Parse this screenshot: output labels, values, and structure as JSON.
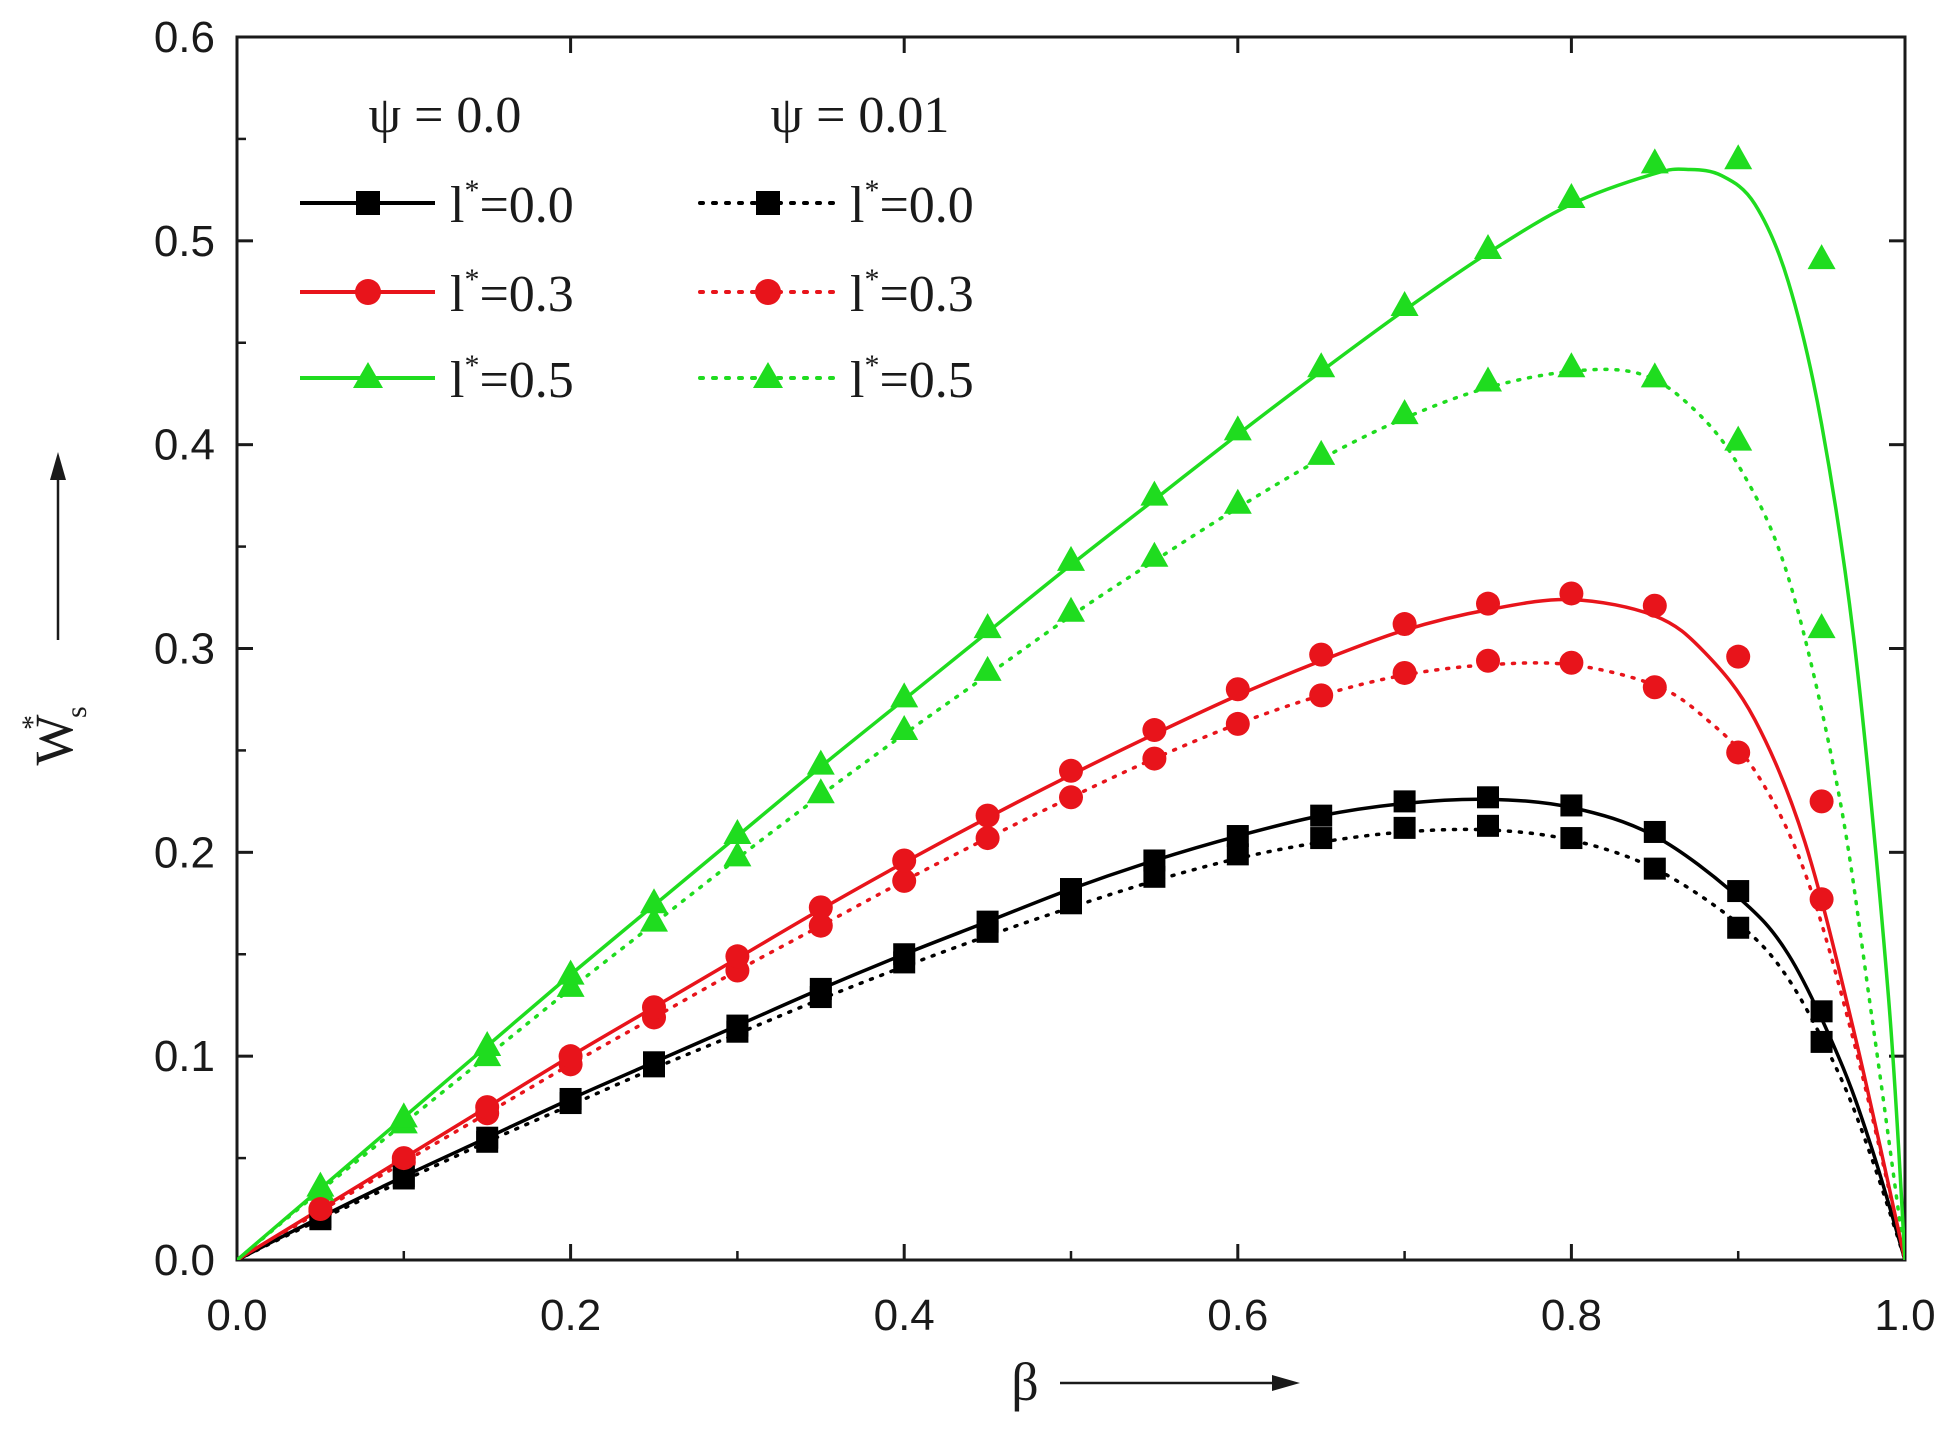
{
  "chart_data": {
    "type": "line",
    "title": "",
    "xlabel": "β",
    "ylabel": "W",
    "ylabel_sup": "*",
    "ylabel_sub": "s",
    "xlim": [
      0.0,
      1.0
    ],
    "ylim": [
      0.0,
      0.6
    ],
    "xticks": [
      0.0,
      0.2,
      0.4,
      0.6,
      0.8,
      1.0
    ],
    "xtick_labels": [
      "0.0",
      "0.2",
      "0.4",
      "0.6",
      "0.8",
      "1.0"
    ],
    "yticks": [
      0.0,
      0.1,
      0.2,
      0.3,
      0.4,
      0.5,
      0.6
    ],
    "ytick_labels": [
      "0.0",
      "0.1",
      "0.2",
      "0.3",
      "0.4",
      "0.5",
      "0.6"
    ],
    "grid": false,
    "legend": {
      "placement": "top-left",
      "group_headers": [
        "ψ = 0.0",
        "ψ = 0.01"
      ]
    },
    "colors": {
      "black": "#000000",
      "red": "#e8141b",
      "green": "#1fdc1f"
    },
    "series": [
      {
        "id": "s0",
        "name": "l*=0.0",
        "name_main": "l",
        "name_sup": "*",
        "name_rest": "=0.0",
        "group": "ψ = 0.0",
        "color": "black",
        "marker": "square",
        "line": "solid",
        "x": [
          0.05,
          0.1,
          0.15,
          0.2,
          0.25,
          0.3,
          0.35,
          0.4,
          0.45,
          0.5,
          0.55,
          0.6,
          0.65,
          0.7,
          0.75,
          0.8,
          0.85,
          0.9,
          0.95
        ],
        "values": [
          0.021,
          0.041,
          0.06,
          0.079,
          0.097,
          0.115,
          0.133,
          0.15,
          0.166,
          0.182,
          0.196,
          0.208,
          0.218,
          0.225,
          0.227,
          0.223,
          0.21,
          0.181,
          0.122
        ],
        "curve": [
          [
            0,
            0
          ],
          [
            0.05,
            0.021
          ],
          [
            0.1,
            0.041
          ],
          [
            0.15,
            0.06
          ],
          [
            0.2,
            0.079
          ],
          [
            0.25,
            0.097
          ],
          [
            0.3,
            0.115
          ],
          [
            0.35,
            0.133
          ],
          [
            0.4,
            0.15
          ],
          [
            0.45,
            0.166
          ],
          [
            0.5,
            0.182
          ],
          [
            0.55,
            0.196
          ],
          [
            0.6,
            0.208
          ],
          [
            0.65,
            0.218
          ],
          [
            0.7,
            0.224
          ],
          [
            0.75,
            0.226
          ],
          [
            0.8,
            0.222
          ],
          [
            0.85,
            0.208
          ],
          [
            0.9,
            0.178
          ],
          [
            0.93,
            0.15
          ],
          [
            0.96,
            0.1
          ],
          [
            0.98,
            0.055
          ],
          [
            1.0,
            0
          ]
        ]
      },
      {
        "id": "s1",
        "name": "l*=0.3",
        "name_main": "l",
        "name_sup": "*",
        "name_rest": "=0.3",
        "group": "ψ = 0.0",
        "color": "red",
        "marker": "circle",
        "line": "solid",
        "x": [
          0.05,
          0.1,
          0.15,
          0.2,
          0.25,
          0.3,
          0.35,
          0.4,
          0.45,
          0.5,
          0.55,
          0.6,
          0.65,
          0.7,
          0.75,
          0.8,
          0.85,
          0.9,
          0.95
        ],
        "values": [
          0.025,
          0.05,
          0.075,
          0.1,
          0.124,
          0.149,
          0.173,
          0.196,
          0.218,
          0.24,
          0.26,
          0.28,
          0.297,
          0.312,
          0.322,
          0.327,
          0.321,
          0.296,
          0.225
        ],
        "curve": [
          [
            0,
            0
          ],
          [
            0.05,
            0.025
          ],
          [
            0.1,
            0.05
          ],
          [
            0.15,
            0.075
          ],
          [
            0.2,
            0.1
          ],
          [
            0.25,
            0.124
          ],
          [
            0.3,
            0.148
          ],
          [
            0.35,
            0.172
          ],
          [
            0.4,
            0.195
          ],
          [
            0.45,
            0.217
          ],
          [
            0.5,
            0.238
          ],
          [
            0.55,
            0.258
          ],
          [
            0.6,
            0.277
          ],
          [
            0.65,
            0.294
          ],
          [
            0.7,
            0.309
          ],
          [
            0.75,
            0.319
          ],
          [
            0.8,
            0.324
          ],
          [
            0.85,
            0.316
          ],
          [
            0.88,
            0.298
          ],
          [
            0.91,
            0.265
          ],
          [
            0.94,
            0.205
          ],
          [
            0.97,
            0.11
          ],
          [
            1.0,
            0
          ]
        ]
      },
      {
        "id": "s2",
        "name": "l*=0.5",
        "name_main": "l",
        "name_sup": "*",
        "name_rest": "=0.5",
        "group": "ψ = 0.0",
        "color": "green",
        "marker": "triangle",
        "line": "solid",
        "x": [
          0.05,
          0.1,
          0.15,
          0.2,
          0.25,
          0.3,
          0.35,
          0.4,
          0.45,
          0.5,
          0.55,
          0.6,
          0.65,
          0.7,
          0.75,
          0.8,
          0.85,
          0.9,
          0.95
        ],
        "values": [
          0.036,
          0.07,
          0.105,
          0.14,
          0.175,
          0.209,
          0.243,
          0.276,
          0.31,
          0.343,
          0.375,
          0.407,
          0.438,
          0.468,
          0.496,
          0.521,
          0.538,
          0.54,
          0.491
        ],
        "curve": [
          [
            0,
            0
          ],
          [
            0.05,
            0.035
          ],
          [
            0.1,
            0.07
          ],
          [
            0.15,
            0.105
          ],
          [
            0.2,
            0.14
          ],
          [
            0.25,
            0.174
          ],
          [
            0.3,
            0.208
          ],
          [
            0.35,
            0.242
          ],
          [
            0.4,
            0.275
          ],
          [
            0.45,
            0.308
          ],
          [
            0.5,
            0.341
          ],
          [
            0.55,
            0.373
          ],
          [
            0.6,
            0.405
          ],
          [
            0.65,
            0.436
          ],
          [
            0.7,
            0.466
          ],
          [
            0.75,
            0.494
          ],
          [
            0.8,
            0.518
          ],
          [
            0.85,
            0.533
          ],
          [
            0.87,
            0.535
          ],
          [
            0.89,
            0.532
          ],
          [
            0.91,
            0.518
          ],
          [
            0.93,
            0.48
          ],
          [
            0.95,
            0.41
          ],
          [
            0.97,
            0.3
          ],
          [
            0.99,
            0.13
          ],
          [
            1.0,
            0
          ]
        ]
      },
      {
        "id": "s3",
        "name": "l*=0.0",
        "name_main": "l",
        "name_sup": "*",
        "name_rest": "=0.0",
        "group": "ψ = 0.01",
        "color": "black",
        "marker": "square",
        "line": "dotted",
        "x": [
          0.05,
          0.1,
          0.15,
          0.2,
          0.25,
          0.3,
          0.35,
          0.4,
          0.45,
          0.5,
          0.55,
          0.6,
          0.65,
          0.7,
          0.75,
          0.8,
          0.85,
          0.9,
          0.95
        ],
        "values": [
          0.02,
          0.04,
          0.058,
          0.077,
          0.095,
          0.112,
          0.129,
          0.146,
          0.161,
          0.175,
          0.188,
          0.199,
          0.207,
          0.212,
          0.213,
          0.207,
          0.192,
          0.163,
          0.107
        ],
        "curve": [
          [
            0,
            0
          ],
          [
            0.05,
            0.02
          ],
          [
            0.1,
            0.039
          ],
          [
            0.15,
            0.058
          ],
          [
            0.2,
            0.076
          ],
          [
            0.25,
            0.094
          ],
          [
            0.3,
            0.111
          ],
          [
            0.35,
            0.128
          ],
          [
            0.4,
            0.144
          ],
          [
            0.45,
            0.159
          ],
          [
            0.5,
            0.173
          ],
          [
            0.55,
            0.186
          ],
          [
            0.6,
            0.197
          ],
          [
            0.65,
            0.205
          ],
          [
            0.7,
            0.21
          ],
          [
            0.75,
            0.211
          ],
          [
            0.8,
            0.206
          ],
          [
            0.85,
            0.192
          ],
          [
            0.9,
            0.165
          ],
          [
            0.93,
            0.138
          ],
          [
            0.96,
            0.092
          ],
          [
            0.98,
            0.05
          ],
          [
            1.0,
            0
          ]
        ]
      },
      {
        "id": "s4",
        "name": "l*=0.3",
        "name_main": "l",
        "name_sup": "*",
        "name_rest": "=0.3",
        "group": "ψ = 0.01",
        "color": "red",
        "marker": "circle",
        "line": "dotted",
        "x": [
          0.05,
          0.1,
          0.15,
          0.2,
          0.25,
          0.3,
          0.35,
          0.4,
          0.45,
          0.5,
          0.55,
          0.6,
          0.65,
          0.7,
          0.75,
          0.8,
          0.85,
          0.9,
          0.95
        ],
        "values": [
          0.024,
          0.048,
          0.072,
          0.096,
          0.119,
          0.142,
          0.164,
          0.186,
          0.207,
          0.227,
          0.246,
          0.263,
          0.277,
          0.288,
          0.294,
          0.293,
          0.281,
          0.249,
          0.177
        ],
        "curve": [
          [
            0,
            0
          ],
          [
            0.05,
            0.024
          ],
          [
            0.1,
            0.048
          ],
          [
            0.15,
            0.072
          ],
          [
            0.2,
            0.096
          ],
          [
            0.25,
            0.119
          ],
          [
            0.3,
            0.142
          ],
          [
            0.35,
            0.164
          ],
          [
            0.4,
            0.186
          ],
          [
            0.45,
            0.207
          ],
          [
            0.5,
            0.227
          ],
          [
            0.55,
            0.246
          ],
          [
            0.6,
            0.263
          ],
          [
            0.65,
            0.277
          ],
          [
            0.7,
            0.287
          ],
          [
            0.75,
            0.292
          ],
          [
            0.8,
            0.292
          ],
          [
            0.85,
            0.282
          ],
          [
            0.88,
            0.266
          ],
          [
            0.91,
            0.24
          ],
          [
            0.94,
            0.19
          ],
          [
            0.97,
            0.105
          ],
          [
            1.0,
            0
          ]
        ]
      },
      {
        "id": "s5",
        "name": "l*=0.5",
        "name_main": "l",
        "name_sup": "*",
        "name_rest": "=0.5",
        "group": "ψ = 0.01",
        "color": "green",
        "marker": "triangle",
        "line": "dotted",
        "x": [
          0.05,
          0.1,
          0.15,
          0.2,
          0.25,
          0.3,
          0.35,
          0.4,
          0.45,
          0.5,
          0.55,
          0.6,
          0.65,
          0.7,
          0.75,
          0.8,
          0.85,
          0.9,
          0.95
        ],
        "values": [
          0.034,
          0.067,
          0.1,
          0.134,
          0.166,
          0.198,
          0.229,
          0.26,
          0.289,
          0.318,
          0.345,
          0.371,
          0.395,
          0.415,
          0.431,
          0.438,
          0.433,
          0.402,
          0.31
        ],
        "curve": [
          [
            0,
            0
          ],
          [
            0.05,
            0.034
          ],
          [
            0.1,
            0.067
          ],
          [
            0.15,
            0.1
          ],
          [
            0.2,
            0.133
          ],
          [
            0.25,
            0.165
          ],
          [
            0.3,
            0.197
          ],
          [
            0.35,
            0.228
          ],
          [
            0.4,
            0.258
          ],
          [
            0.45,
            0.287
          ],
          [
            0.5,
            0.316
          ],
          [
            0.55,
            0.343
          ],
          [
            0.6,
            0.369
          ],
          [
            0.65,
            0.393
          ],
          [
            0.7,
            0.413
          ],
          [
            0.75,
            0.428
          ],
          [
            0.8,
            0.436
          ],
          [
            0.84,
            0.435
          ],
          [
            0.87,
            0.42
          ],
          [
            0.9,
            0.39
          ],
          [
            0.93,
            0.335
          ],
          [
            0.96,
            0.23
          ],
          [
            0.98,
            0.12
          ],
          [
            1.0,
            0
          ]
        ]
      }
    ]
  }
}
